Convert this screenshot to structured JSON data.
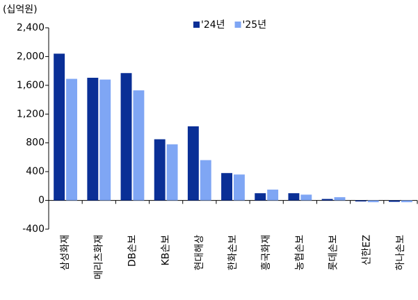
{
  "chart_data": {
    "type": "bar",
    "unit_label": "(십억원)",
    "categories": [
      "삼성화재",
      "메리츠화재",
      "DB손보",
      "KB손보",
      "현대해상",
      "한화손보",
      "흥국화재",
      "농협손보",
      "롯데손보",
      "신한EZ",
      "하나손보"
    ],
    "series": [
      {
        "name": "'24년",
        "color": "#0a2f96",
        "values": [
          2040,
          1705,
          1770,
          850,
          1030,
          380,
          100,
          100,
          20,
          -15,
          -20
        ]
      },
      {
        "name": "'25년",
        "color": "#7fa6f4",
        "values": [
          1690,
          1680,
          1530,
          780,
          560,
          360,
          150,
          80,
          45,
          -25,
          -25
        ]
      }
    ],
    "ylim": [
      -400,
      2400
    ],
    "yticks": [
      -400,
      0,
      400,
      800,
      {
        "value": 1200,
        "label": "1,200"
      },
      {
        "value": 1600,
        "label": "1,600"
      },
      {
        "value": 2000,
        "label": "2,000"
      },
      {
        "value": 2400,
        "label": "2,400"
      }
    ],
    "legend": "top",
    "grid": false
  }
}
